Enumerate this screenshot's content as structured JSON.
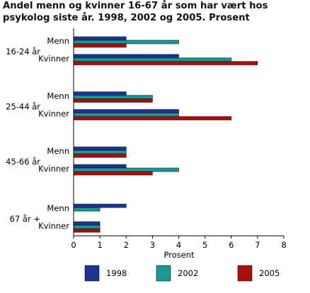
{
  "chart_data": {
    "type": "bar",
    "orientation": "horizontal",
    "title": "Andel menn og kvinner 16-67 år som har vært hos psykolog siste år. 1998, 2002 og 2005. Prosent",
    "xlabel": "Prosent",
    "ylabel": "",
    "xlim": [
      0,
      8
    ],
    "xticks": [
      "0",
      "1",
      "2",
      "3",
      "4",
      "5",
      "6",
      "7",
      "8"
    ],
    "grid": false,
    "legend_position": "bottom",
    "groups": [
      {
        "label": "16-24 år",
        "rows": [
          {
            "label": "Menn",
            "values": [
              2,
              4,
              2
            ]
          },
          {
            "label": "Kvinner",
            "values": [
              4,
              6,
              7
            ]
          }
        ]
      },
      {
        "label": "25-44 år",
        "rows": [
          {
            "label": "Menn",
            "values": [
              2,
              3,
              3
            ]
          },
          {
            "label": "Kvinner",
            "values": [
              4,
              4,
              6
            ]
          }
        ]
      },
      {
        "label": "45-66 år",
        "rows": [
          {
            "label": "Menn",
            "values": [
              2,
              2,
              2
            ]
          },
          {
            "label": "Kvinner",
            "values": [
              2,
              4,
              3
            ]
          }
        ]
      },
      {
        "label": "67 år +",
        "rows": [
          {
            "label": "Menn",
            "values": [
              2,
              1,
              0
            ]
          },
          {
            "label": "Kvinner",
            "values": [
              1,
              1,
              1
            ]
          }
        ]
      }
    ],
    "series": [
      {
        "name": "1998",
        "color": "#1c3594"
      },
      {
        "name": "2002",
        "color": "#199a98"
      },
      {
        "name": "2005",
        "color": "#a90f0f"
      }
    ]
  }
}
